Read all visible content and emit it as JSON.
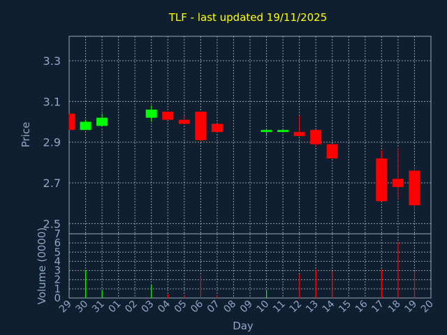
{
  "chart_data": {
    "type": "candlestick",
    "title": "TLF - last updated 19/11/2025",
    "xlabel": "Day",
    "ylabel": "Price",
    "volume_label": "Volume (0000)",
    "x_ticks": [
      "29",
      "30",
      "31",
      "01",
      "02",
      "03",
      "04",
      "05",
      "06",
      "07",
      "08",
      "09",
      "10",
      "11",
      "12",
      "13",
      "14",
      "15",
      "16",
      "17",
      "18",
      "19",
      "20"
    ],
    "price_ticks": [
      2.5,
      2.7,
      2.9,
      3.1,
      3.3
    ],
    "price_ylim": [
      2.45,
      3.42
    ],
    "volume_ticks": [
      0,
      1,
      2,
      3,
      4,
      5,
      6,
      7
    ],
    "volume_ylim": [
      0,
      7
    ],
    "grid": true,
    "up_color": "#00ff00",
    "down_color": "#ff0000",
    "candles": [
      {
        "day": "29",
        "idx": 0,
        "open": 3.04,
        "high": 3.04,
        "low": 2.96,
        "close": 2.96
      },
      {
        "day": "30",
        "idx": 1,
        "open": 2.96,
        "high": 3.01,
        "low": 2.96,
        "close": 3.0
      },
      {
        "day": "31",
        "idx": 2,
        "open": 2.98,
        "high": 3.04,
        "low": 2.98,
        "close": 3.02
      },
      {
        "day": "03",
        "idx": 5,
        "open": 3.02,
        "high": 3.08,
        "low": 3.0,
        "close": 3.06
      },
      {
        "day": "04",
        "idx": 6,
        "open": 3.05,
        "high": 3.05,
        "low": 3.01,
        "close": 3.01
      },
      {
        "day": "05",
        "idx": 7,
        "open": 3.01,
        "high": 3.03,
        "low": 2.99,
        "close": 2.99
      },
      {
        "day": "06",
        "idx": 8,
        "open": 3.05,
        "high": 3.05,
        "low": 2.9,
        "close": 2.91
      },
      {
        "day": "07",
        "idx": 9,
        "open": 2.99,
        "high": 2.99,
        "low": 2.95,
        "close": 2.95
      },
      {
        "day": "10",
        "idx": 12,
        "open": 2.95,
        "high": 2.96,
        "low": 2.93,
        "close": 2.96
      },
      {
        "day": "11",
        "idx": 13,
        "open": 2.95,
        "high": 2.96,
        "low": 2.95,
        "close": 2.96
      },
      {
        "day": "12",
        "idx": 14,
        "open": 2.95,
        "high": 3.03,
        "low": 2.93,
        "close": 2.93
      },
      {
        "day": "13",
        "idx": 15,
        "open": 2.96,
        "high": 2.96,
        "low": 2.88,
        "close": 2.89
      },
      {
        "day": "14",
        "idx": 16,
        "open": 2.89,
        "high": 2.89,
        "low": 2.82,
        "close": 2.82
      },
      {
        "day": "17",
        "idx": 19,
        "open": 2.82,
        "high": 2.86,
        "low": 2.61,
        "close": 2.61
      },
      {
        "day": "18",
        "idx": 20,
        "open": 2.72,
        "high": 2.87,
        "low": 2.62,
        "close": 2.68
      },
      {
        "day": "19",
        "idx": 21,
        "open": 2.76,
        "high": 2.78,
        "low": 2.56,
        "close": 2.59
      }
    ],
    "volume": [
      {
        "day": "30",
        "idx": 1,
        "value": 3.0,
        "direction": "up"
      },
      {
        "day": "31",
        "idx": 2,
        "value": 0.8,
        "direction": "up"
      },
      {
        "day": "03",
        "idx": 5,
        "value": 1.4,
        "direction": "up"
      },
      {
        "day": "04",
        "idx": 6,
        "value": 0.4,
        "direction": "down"
      },
      {
        "day": "05",
        "idx": 7,
        "value": 0.3,
        "direction": "down"
      },
      {
        "day": "06",
        "idx": 8,
        "value": 2.4,
        "direction": "down"
      },
      {
        "day": "07",
        "idx": 9,
        "value": 0.3,
        "direction": "down"
      },
      {
        "day": "10",
        "idx": 12,
        "value": 0.8,
        "direction": "up"
      },
      {
        "day": "12",
        "idx": 14,
        "value": 2.6,
        "direction": "down"
      },
      {
        "day": "13",
        "idx": 15,
        "value": 3.1,
        "direction": "down"
      },
      {
        "day": "14",
        "idx": 16,
        "value": 2.9,
        "direction": "down"
      },
      {
        "day": "17",
        "idx": 19,
        "value": 3.1,
        "direction": "down"
      },
      {
        "day": "18",
        "idx": 20,
        "value": 6.1,
        "direction": "down"
      },
      {
        "day": "19",
        "idx": 21,
        "value": 2.9,
        "direction": "down"
      }
    ]
  }
}
